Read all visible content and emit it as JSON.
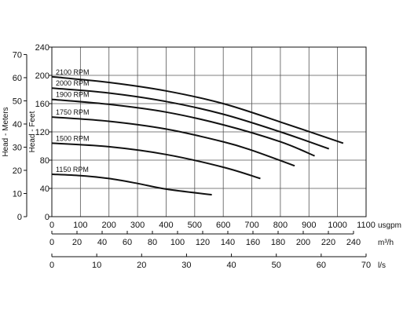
{
  "chart_data": {
    "type": "line",
    "axes": {
      "head_meters": {
        "label": "Head - Meters",
        "ticks": [
          "0",
          "10",
          "20",
          "30",
          "40",
          "50",
          "60",
          "70"
        ],
        "range": [
          0,
          73.2
        ]
      },
      "head_feet": {
        "label": "Head - Feet",
        "ticks": [
          "0",
          "40",
          "80",
          "120",
          "160",
          "200",
          "240"
        ],
        "range": [
          0,
          240
        ]
      },
      "flow_usgpm": {
        "label": "usgpm",
        "ticks": [
          "0",
          "100",
          "200",
          "300",
          "400",
          "500",
          "600",
          "700",
          "800",
          "900",
          "1000",
          "1100"
        ],
        "range": [
          0,
          1100
        ]
      },
      "flow_m3h": {
        "label": "m³/h",
        "ticks": [
          "0",
          "20",
          "40",
          "60",
          "80",
          "100",
          "120",
          "140",
          "160",
          "180",
          "200",
          "220",
          "240"
        ],
        "range": [
          0,
          250
        ]
      },
      "flow_ls": {
        "label": "l/s",
        "ticks": [
          "0",
          "10",
          "20",
          "30",
          "40",
          "50",
          "60",
          "70"
        ],
        "range": [
          0,
          70
        ]
      }
    },
    "grid": true,
    "series": [
      {
        "name": "2100 RPM",
        "points": [
          [
            0,
            198
          ],
          [
            200,
            190
          ],
          [
            400,
            178
          ],
          [
            600,
            160
          ],
          [
            800,
            134
          ],
          [
            1020,
            104
          ]
        ]
      },
      {
        "name": "2000 RPM",
        "points": [
          [
            0,
            182
          ],
          [
            200,
            175
          ],
          [
            400,
            163
          ],
          [
            600,
            145
          ],
          [
            800,
            120
          ],
          [
            970,
            96
          ]
        ]
      },
      {
        "name": "1900 RPM",
        "points": [
          [
            0,
            166
          ],
          [
            200,
            159
          ],
          [
            400,
            148
          ],
          [
            600,
            130
          ],
          [
            800,
            106
          ],
          [
            920,
            86
          ]
        ]
      },
      {
        "name": "1750 RPM",
        "points": [
          [
            0,
            141
          ],
          [
            200,
            135
          ],
          [
            400,
            124
          ],
          [
            600,
            106
          ],
          [
            700,
            94
          ],
          [
            850,
            72
          ]
        ]
      },
      {
        "name": "1500 RPM",
        "points": [
          [
            0,
            104
          ],
          [
            200,
            99
          ],
          [
            400,
            88
          ],
          [
            600,
            70
          ],
          [
            730,
            54
          ]
        ]
      },
      {
        "name": "1150 RPM",
        "points": [
          [
            0,
            60
          ],
          [
            100,
            58
          ],
          [
            200,
            54
          ],
          [
            300,
            47
          ],
          [
            400,
            39
          ],
          [
            560,
            31
          ]
        ]
      }
    ]
  }
}
